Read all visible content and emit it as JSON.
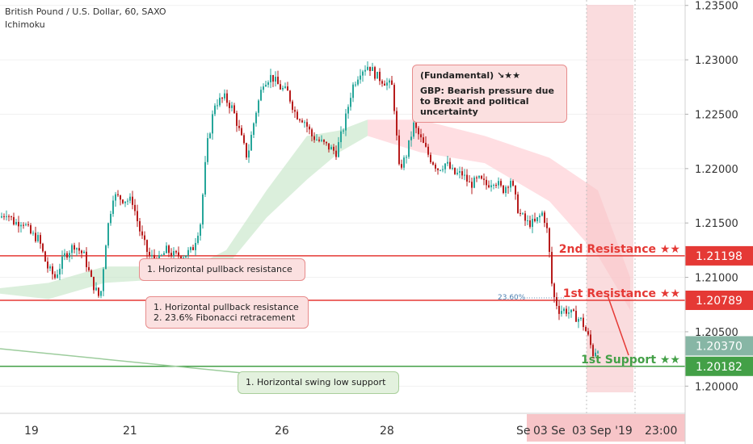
{
  "header": {
    "symbol_line": "British Pound / U.S. Dollar, 60, SAXO",
    "indicator": "Ichimoku"
  },
  "colors": {
    "up_candle": "#26a69a",
    "down_candle": "#b71c1c",
    "resistance": "#e53935",
    "support": "#43a047",
    "cloud_bull": "#c8e6c9",
    "cloud_bear": "#ffcdd2",
    "price_tag_gray": "#5f9e87"
  },
  "chart_data": {
    "type": "candlestick",
    "ylim": [
      1.1975,
      1.2355
    ],
    "y_ticks": [
      "1.23500",
      "1.23000",
      "1.22500",
      "1.22000",
      "1.21500",
      "1.21000",
      "1.20500",
      "1.20000"
    ],
    "x_ticks": [
      "19",
      "21",
      "26",
      "28",
      "Se",
      "03 Se",
      "03 Sep '19",
      "23:00"
    ],
    "close_path": [
      [
        0,
        1.2155
      ],
      [
        8,
        1.216
      ],
      [
        18,
        1.215
      ],
      [
        28,
        1.2152
      ],
      [
        38,
        1.214
      ],
      [
        48,
        1.2135
      ],
      [
        58,
        1.211
      ],
      [
        68,
        1.21
      ],
      [
        80,
        1.212
      ],
      [
        92,
        1.213
      ],
      [
        104,
        1.212
      ],
      [
        114,
        1.2095
      ],
      [
        124,
        1.208
      ],
      [
        132,
        1.214
      ],
      [
        140,
        1.2175
      ],
      [
        152,
        1.2172
      ],
      [
        164,
        1.217
      ],
      [
        174,
        1.214
      ],
      [
        184,
        1.212
      ],
      [
        196,
        1.2115
      ],
      [
        206,
        1.2125
      ],
      [
        216,
        1.212
      ],
      [
        226,
        1.212
      ],
      [
        238,
        1.2125
      ],
      [
        248,
        1.215
      ],
      [
        256,
        1.222
      ],
      [
        266,
        1.226
      ],
      [
        278,
        1.2265
      ],
      [
        288,
        1.2255
      ],
      [
        298,
        1.223
      ],
      [
        306,
        1.221
      ],
      [
        316,
        1.225
      ],
      [
        326,
        1.228
      ],
      [
        336,
        1.2285
      ],
      [
        346,
        1.2275
      ],
      [
        356,
        1.227
      ],
      [
        366,
        1.225
      ],
      [
        376,
        1.2245
      ],
      [
        386,
        1.223
      ],
      [
        396,
        1.2225
      ],
      [
        406,
        1.222
      ],
      [
        416,
        1.2215
      ],
      [
        426,
        1.224
      ],
      [
        436,
        1.2275
      ],
      [
        446,
        1.229
      ],
      [
        456,
        1.2295
      ],
      [
        466,
        1.2285
      ],
      [
        476,
        1.228
      ],
      [
        486,
        1.2275
      ],
      [
        494,
        1.22
      ],
      [
        502,
        1.221
      ],
      [
        512,
        1.224
      ],
      [
        522,
        1.2225
      ],
      [
        532,
        1.221
      ],
      [
        542,
        1.22
      ],
      [
        552,
        1.2205
      ],
      [
        562,
        1.2195
      ],
      [
        572,
        1.2195
      ],
      [
        582,
        1.2185
      ],
      [
        592,
        1.219
      ],
      [
        602,
        1.2185
      ],
      [
        612,
        1.219
      ],
      [
        622,
        1.218
      ],
      [
        632,
        1.219
      ],
      [
        642,
        1.216
      ],
      [
        652,
        1.215
      ],
      [
        662,
        1.215
      ],
      [
        672,
        1.216
      ],
      [
        678,
        1.214
      ],
      [
        684,
        1.2085
      ],
      [
        692,
        1.207
      ],
      [
        700,
        1.207
      ],
      [
        710,
        1.2065
      ],
      [
        720,
        1.206
      ],
      [
        728,
        1.2045
      ],
      [
        734,
        1.203
      ],
      [
        740,
        1.2036
      ]
    ],
    "cloud_bull": [
      [
        0,
        1.209
      ],
      [
        60,
        1.2095
      ],
      [
        130,
        1.211
      ],
      [
        240,
        1.211
      ],
      [
        280,
        1.2125
      ],
      [
        330,
        1.218
      ],
      [
        380,
        1.223
      ],
      [
        420,
        1.2235
      ],
      [
        455,
        1.2245
      ]
    ],
    "cloud_bull_base": [
      [
        0,
        1.2085
      ],
      [
        60,
        1.208
      ],
      [
        130,
        1.2095
      ],
      [
        240,
        1.21
      ],
      [
        280,
        1.211
      ],
      [
        330,
        1.2155
      ],
      [
        380,
        1.219
      ],
      [
        420,
        1.2215
      ],
      [
        455,
        1.223
      ]
    ],
    "cloud_bear": [
      [
        455,
        1.2245
      ],
      [
        520,
        1.2245
      ],
      [
        600,
        1.223
      ],
      [
        680,
        1.221
      ],
      [
        740,
        1.218
      ],
      [
        780,
        1.21
      ]
    ],
    "cloud_bear_base": [
      [
        455,
        1.223
      ],
      [
        520,
        1.2215
      ],
      [
        600,
        1.2205
      ],
      [
        680,
        1.217
      ],
      [
        740,
        1.212
      ],
      [
        780,
        1.207
      ]
    ],
    "levels": [
      {
        "label": "2nd Resistance ★★",
        "price": "1.21198",
        "value": 1.21198,
        "kind": "resistance"
      },
      {
        "label": "1st Resistance ★★",
        "price": "1.20789",
        "value": 1.20789,
        "kind": "resistance"
      },
      {
        "label": "1st Support ★★",
        "price": "1.20182",
        "value": 1.20182,
        "kind": "support"
      }
    ],
    "current_price": "1.20370",
    "fib_label": "23.60%",
    "fib_value": 1.20789
  },
  "callouts": {
    "fundamental_title": "(Fundamental) ↘★★",
    "fundamental_body": "GBP: Bearish pressure due to Brexit and political uncertainty",
    "pullback_1": "1. Horizontal pullback resistance",
    "pullback_2_line1": "1. Horizontal pullback resistance",
    "pullback_2_line2": "2. 23.6% Fibonacci retracement",
    "support_1": "1. Horizontal swing low support"
  }
}
